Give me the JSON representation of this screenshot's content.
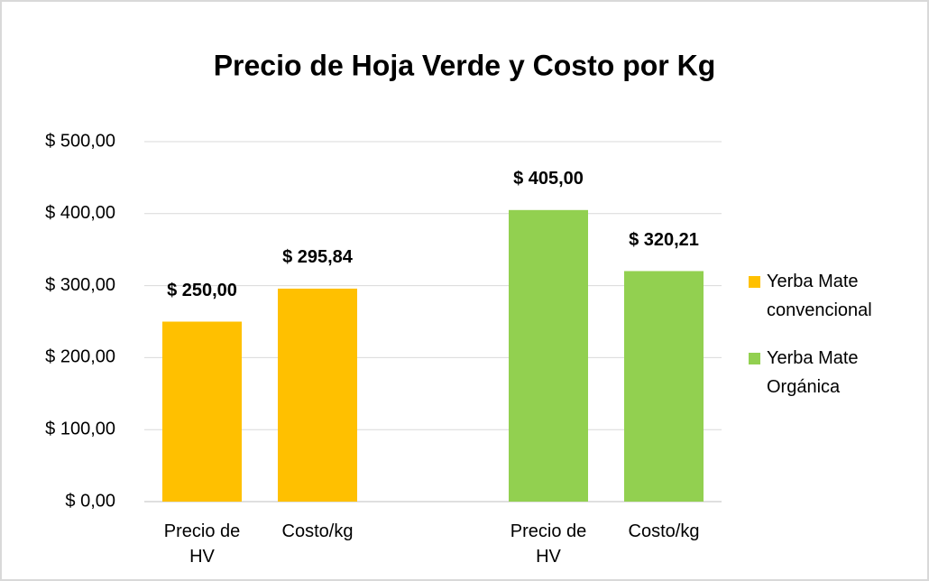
{
  "chart_data": {
    "type": "bar",
    "title": "Precio de Hoja Verde y Costo por Kg",
    "categories": [
      "Precio de HV",
      "Costo/kg",
      null,
      "Precio de HV",
      "Costo/kg"
    ],
    "series": [
      {
        "name": "Yerba Mate convencional",
        "color": "#ffc000",
        "values": [
          250,
          295.84,
          null,
          null,
          null
        ],
        "value_labels": [
          "$ 250,00",
          "$ 295,84",
          null,
          null,
          null
        ]
      },
      {
        "name": "Yerba Mate Orgánica",
        "color": "#92d050",
        "values": [
          null,
          null,
          null,
          405,
          320.21
        ],
        "value_labels": [
          null,
          null,
          null,
          "$ 405,00",
          "$ 320,21"
        ]
      }
    ],
    "ylim": [
      0,
      500
    ],
    "yticks": [
      {
        "value": 0,
        "label": "$ 0,00"
      },
      {
        "value": 100,
        "label": "$ 100,00"
      },
      {
        "value": 200,
        "label": "$ 200,00"
      },
      {
        "value": 300,
        "label": "$ 300,00"
      },
      {
        "value": 400,
        "label": "$ 400,00"
      },
      {
        "value": 500,
        "label": "$ 500,00"
      }
    ],
    "grid": true,
    "legend": "right"
  }
}
